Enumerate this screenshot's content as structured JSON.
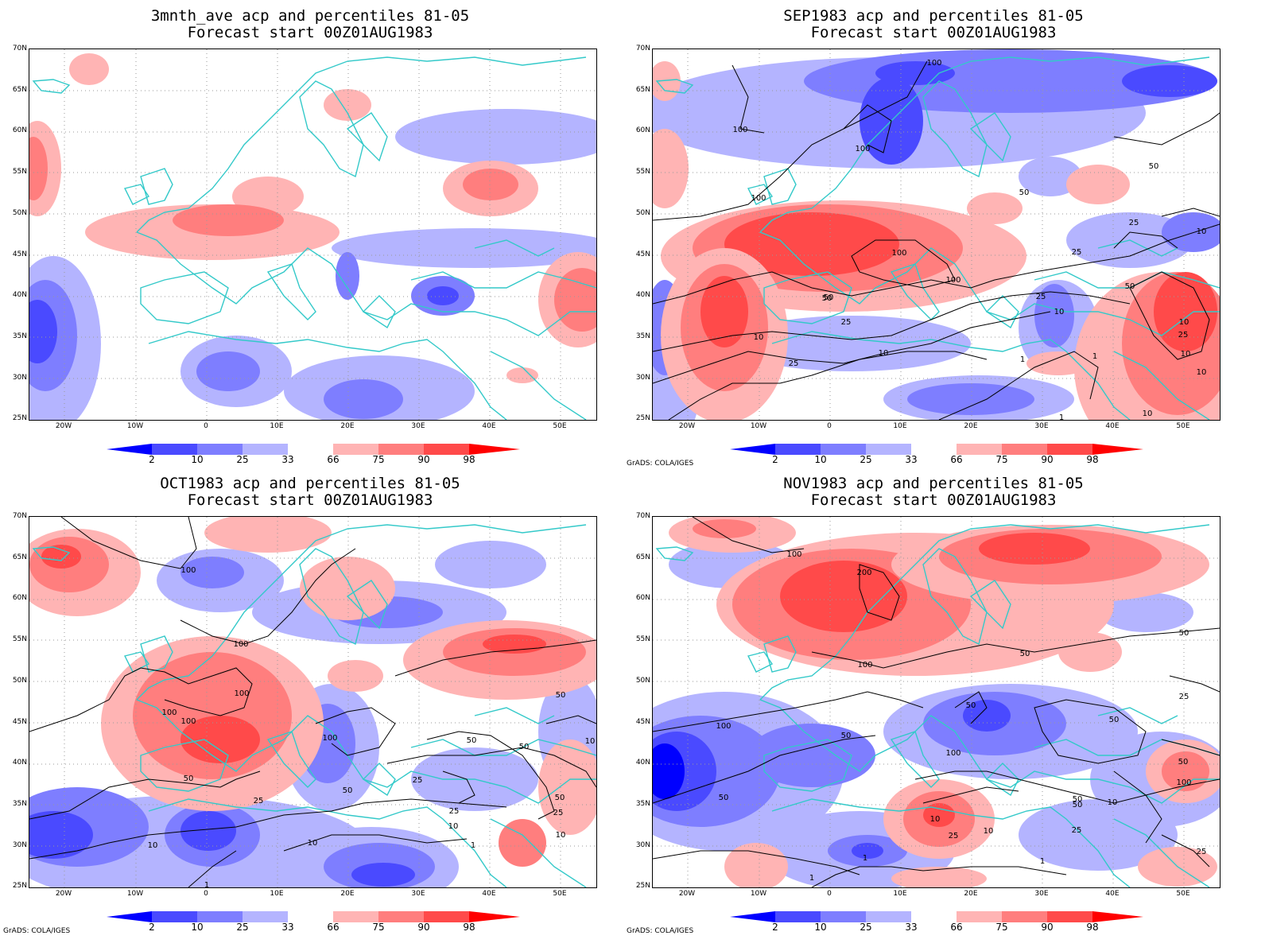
{
  "colors": {
    "coast": "#33c9c9",
    "grid": "#9a9a9a",
    "contour": "#000000",
    "classes": [
      "#0000ff",
      "#4a4aff",
      "#7e7eff",
      "#b4b4ff",
      "#ffffff",
      "#ffb4b4",
      "#ff7e7e",
      "#ff4a4a",
      "#ff0000"
    ]
  },
  "axis": {
    "lat_labels": [
      "70N",
      "65N",
      "60N",
      "55N",
      "50N",
      "45N",
      "40N",
      "35N",
      "30N",
      "25N"
    ],
    "lon_labels": [
      "20W",
      "10W",
      "0",
      "10E",
      "20E",
      "30E",
      "40E",
      "50E"
    ]
  },
  "colorbar": {
    "ticks": [
      "2",
      "10",
      "25",
      "33",
      "66",
      "75",
      "90",
      "98"
    ]
  },
  "credit": "GrADS: COLA/IGES",
  "panels": [
    {
      "id": "p1",
      "title_line1": "3mnth_ave acp and percentiles 81-05",
      "title_line2": "Forecast start 00Z01AUG1983",
      "show_credit": false,
      "contour_labels": []
    },
    {
      "id": "p2",
      "title_line1": "SEP1983 acp and percentiles 81-05",
      "title_line2": "Forecast start 00Z01AUG1983",
      "show_credit": true,
      "contour_labels": [
        "100",
        "100",
        "100",
        "100",
        "50",
        "50",
        "25",
        "100",
        "100",
        "50",
        "25",
        "10",
        "25",
        "10",
        "50",
        "25",
        "10",
        "1",
        "1",
        "10",
        "10",
        "25",
        "10",
        "50",
        "25",
        "10",
        "1",
        "10"
      ]
    },
    {
      "id": "p3",
      "title_line1": "OCT1983 acp and percentiles 81-05",
      "title_line2": "Forecast start 00Z01AUG1983",
      "show_credit": true,
      "contour_labels": [
        "100",
        "100",
        "100",
        "100",
        "100",
        "50",
        "100",
        "50",
        "50",
        "25",
        "50",
        "50",
        "25",
        "10",
        "25",
        "10",
        "10",
        "10",
        "1",
        "1",
        "10",
        "50",
        "25"
      ]
    },
    {
      "id": "p4",
      "title_line1": "NOV1983 acp and percentiles 81-05",
      "title_line2": "Forecast start 00Z01AUG1983",
      "show_credit": true,
      "contour_labels": [
        "100",
        "200",
        "100",
        "100",
        "50",
        "50",
        "50",
        "50",
        "50",
        "100",
        "25",
        "50",
        "50",
        "100",
        "50",
        "25",
        "10",
        "10",
        "25",
        "10",
        "1",
        "1",
        "1",
        "25",
        "50"
      ]
    }
  ]
}
